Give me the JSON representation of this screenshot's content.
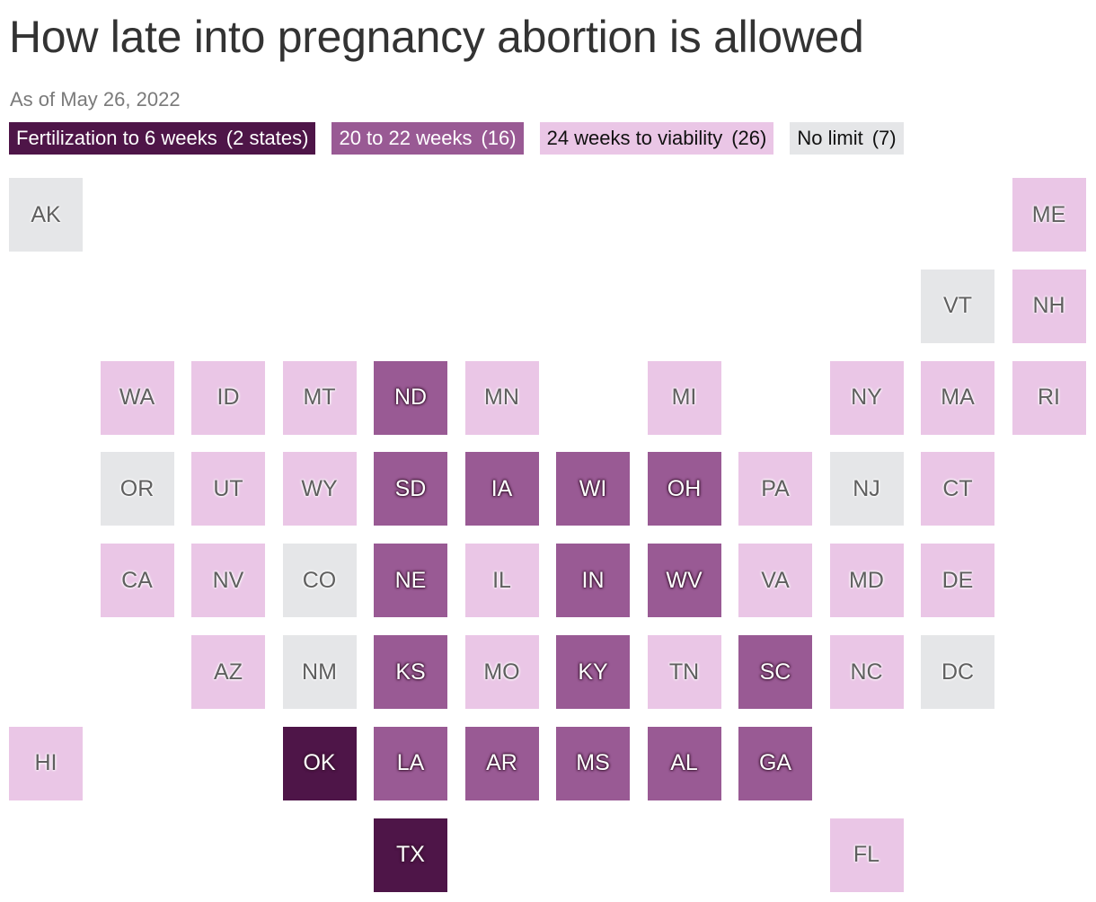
{
  "title": "How late into pregnancy abortion is allowed",
  "subtitle": "As of May 26, 2022",
  "legend": [
    {
      "key": "six",
      "label": "Fertilization to 6 weeks",
      "count": "(2 states)",
      "color": "#4e1548",
      "text_color": "#ffffff"
    },
    {
      "key": "twenty",
      "label": "20 to 22 weeks",
      "count": "(16)",
      "color": "#995a94",
      "text_color": "#ffffff"
    },
    {
      "key": "viability",
      "label": "24 weeks to viability",
      "count": "(26)",
      "color": "#eac6e6",
      "text_color": "#111111"
    },
    {
      "key": "none",
      "label": "No limit",
      "count": "(7)",
      "color": "#e5e6e8",
      "text_color": "#111111"
    }
  ],
  "states": [
    {
      "abbr": "AK",
      "row": 0,
      "col": 0,
      "category": "none"
    },
    {
      "abbr": "ME",
      "row": 0,
      "col": 11,
      "category": "viability"
    },
    {
      "abbr": "VT",
      "row": 1,
      "col": 10,
      "category": "none"
    },
    {
      "abbr": "NH",
      "row": 1,
      "col": 11,
      "category": "viability"
    },
    {
      "abbr": "WA",
      "row": 2,
      "col": 1,
      "category": "viability"
    },
    {
      "abbr": "ID",
      "row": 2,
      "col": 2,
      "category": "viability"
    },
    {
      "abbr": "MT",
      "row": 2,
      "col": 3,
      "category": "viability"
    },
    {
      "abbr": "ND",
      "row": 2,
      "col": 4,
      "category": "twenty"
    },
    {
      "abbr": "MN",
      "row": 2,
      "col": 5,
      "category": "viability"
    },
    {
      "abbr": "MI",
      "row": 2,
      "col": 7,
      "category": "viability"
    },
    {
      "abbr": "NY",
      "row": 2,
      "col": 9,
      "category": "viability"
    },
    {
      "abbr": "MA",
      "row": 2,
      "col": 10,
      "category": "viability"
    },
    {
      "abbr": "RI",
      "row": 2,
      "col": 11,
      "category": "viability"
    },
    {
      "abbr": "OR",
      "row": 3,
      "col": 1,
      "category": "none"
    },
    {
      "abbr": "UT",
      "row": 3,
      "col": 2,
      "category": "viability"
    },
    {
      "abbr": "WY",
      "row": 3,
      "col": 3,
      "category": "viability"
    },
    {
      "abbr": "SD",
      "row": 3,
      "col": 4,
      "category": "twenty"
    },
    {
      "abbr": "IA",
      "row": 3,
      "col": 5,
      "category": "twenty"
    },
    {
      "abbr": "WI",
      "row": 3,
      "col": 6,
      "category": "twenty"
    },
    {
      "abbr": "OH",
      "row": 3,
      "col": 7,
      "category": "twenty"
    },
    {
      "abbr": "PA",
      "row": 3,
      "col": 8,
      "category": "viability"
    },
    {
      "abbr": "NJ",
      "row": 3,
      "col": 9,
      "category": "none"
    },
    {
      "abbr": "CT",
      "row": 3,
      "col": 10,
      "category": "viability"
    },
    {
      "abbr": "CA",
      "row": 4,
      "col": 1,
      "category": "viability"
    },
    {
      "abbr": "NV",
      "row": 4,
      "col": 2,
      "category": "viability"
    },
    {
      "abbr": "CO",
      "row": 4,
      "col": 3,
      "category": "none"
    },
    {
      "abbr": "NE",
      "row": 4,
      "col": 4,
      "category": "twenty"
    },
    {
      "abbr": "IL",
      "row": 4,
      "col": 5,
      "category": "viability"
    },
    {
      "abbr": "IN",
      "row": 4,
      "col": 6,
      "category": "twenty"
    },
    {
      "abbr": "WV",
      "row": 4,
      "col": 7,
      "category": "twenty"
    },
    {
      "abbr": "VA",
      "row": 4,
      "col": 8,
      "category": "viability"
    },
    {
      "abbr": "MD",
      "row": 4,
      "col": 9,
      "category": "viability"
    },
    {
      "abbr": "DE",
      "row": 4,
      "col": 10,
      "category": "viability"
    },
    {
      "abbr": "AZ",
      "row": 5,
      "col": 2,
      "category": "viability"
    },
    {
      "abbr": "NM",
      "row": 5,
      "col": 3,
      "category": "none"
    },
    {
      "abbr": "KS",
      "row": 5,
      "col": 4,
      "category": "twenty"
    },
    {
      "abbr": "MO",
      "row": 5,
      "col": 5,
      "category": "viability"
    },
    {
      "abbr": "KY",
      "row": 5,
      "col": 6,
      "category": "twenty"
    },
    {
      "abbr": "TN",
      "row": 5,
      "col": 7,
      "category": "viability"
    },
    {
      "abbr": "SC",
      "row": 5,
      "col": 8,
      "category": "twenty"
    },
    {
      "abbr": "NC",
      "row": 5,
      "col": 9,
      "category": "viability"
    },
    {
      "abbr": "DC",
      "row": 5,
      "col": 10,
      "category": "none"
    },
    {
      "abbr": "HI",
      "row": 6,
      "col": 0,
      "category": "viability"
    },
    {
      "abbr": "OK",
      "row": 6,
      "col": 3,
      "category": "six"
    },
    {
      "abbr": "LA",
      "row": 6,
      "col": 4,
      "category": "twenty"
    },
    {
      "abbr": "AR",
      "row": 6,
      "col": 5,
      "category": "twenty"
    },
    {
      "abbr": "MS",
      "row": 6,
      "col": 6,
      "category": "twenty"
    },
    {
      "abbr": "AL",
      "row": 6,
      "col": 7,
      "category": "twenty"
    },
    {
      "abbr": "GA",
      "row": 6,
      "col": 8,
      "category": "twenty"
    },
    {
      "abbr": "TX",
      "row": 7,
      "col": 4,
      "category": "six"
    },
    {
      "abbr": "FL",
      "row": 7,
      "col": 9,
      "category": "viability"
    }
  ]
}
